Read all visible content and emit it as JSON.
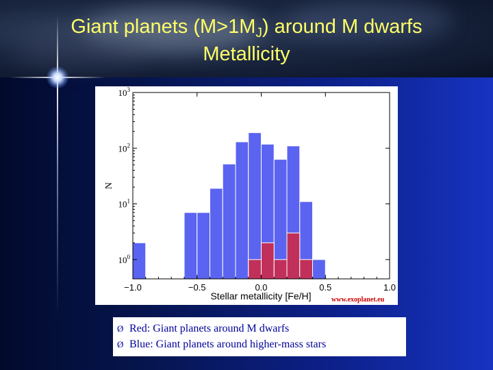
{
  "slide": {
    "title_main": "Giant planets (M>1M",
    "title_sub": "J",
    "title_end": ") around M dwarfs",
    "subtitle": "Metallicity",
    "watermark": "www.exoplanet.eu"
  },
  "legend_items": [
    {
      "bullet": "Ø",
      "text": "Red: Giant planets around M dwarfs"
    },
    {
      "bullet": "Ø",
      "text": "Blue: Giant planets around higher-mass stars"
    }
  ],
  "colors": {
    "blue_bars": "#5b64f0",
    "red_bars": "#c0305a",
    "title": "#ffff66",
    "legend_text": "#000099"
  },
  "chart_data": {
    "type": "bar",
    "title": "",
    "xlabel": "Stellar metallicity [Fe/H]",
    "ylabel": "N",
    "xlim": [
      -1.0,
      1.0
    ],
    "ylim": [
      0.45,
      1000
    ],
    "yscale": "log",
    "bin_width": 0.1,
    "x_ticks": [
      {
        "value": -1.0,
        "label": "−1.0"
      },
      {
        "value": -0.5,
        "label": "−0.5"
      },
      {
        "value": 0.0,
        "label": "0.0"
      },
      {
        "value": 0.5,
        "label": "0.5"
      },
      {
        "value": 1.0,
        "label": "1.0"
      }
    ],
    "y_ticks": [
      {
        "value": 1,
        "base": "10",
        "exp": "0"
      },
      {
        "value": 10,
        "base": "10",
        "exp": "1"
      },
      {
        "value": 100,
        "base": "10",
        "exp": "2"
      },
      {
        "value": 1000,
        "base": "10",
        "exp": "3"
      }
    ],
    "series": [
      {
        "color": "#5b64f0",
        "bins": [
          {
            "x0": -1.0,
            "x1": -0.9,
            "value": 2
          },
          {
            "x0": -0.6,
            "x1": -0.5,
            "value": 7
          },
          {
            "x0": -0.5,
            "x1": -0.4,
            "value": 7
          },
          {
            "x0": -0.4,
            "x1": -0.3,
            "value": 19
          },
          {
            "x0": -0.3,
            "x1": -0.2,
            "value": 52
          },
          {
            "x0": -0.2,
            "x1": -0.1,
            "value": 130
          },
          {
            "x0": -0.1,
            "x1": 0.0,
            "value": 190
          },
          {
            "x0": 0.0,
            "x1": 0.1,
            "value": 118
          },
          {
            "x0": 0.1,
            "x1": 0.2,
            "value": 63
          },
          {
            "x0": 0.2,
            "x1": 0.3,
            "value": 110
          },
          {
            "x0": 0.3,
            "x1": 0.4,
            "value": 11
          },
          {
            "x0": 0.4,
            "x1": 0.5,
            "value": 1
          }
        ]
      },
      {
        "color": "#c0305a",
        "bins": [
          {
            "x0": -0.1,
            "x1": 0.0,
            "value": 1
          },
          {
            "x0": 0.0,
            "x1": 0.1,
            "value": 2
          },
          {
            "x0": 0.1,
            "x1": 0.2,
            "value": 1
          },
          {
            "x0": 0.2,
            "x1": 0.3,
            "value": 3
          },
          {
            "x0": 0.3,
            "x1": 0.4,
            "value": 1
          }
        ]
      }
    ]
  }
}
